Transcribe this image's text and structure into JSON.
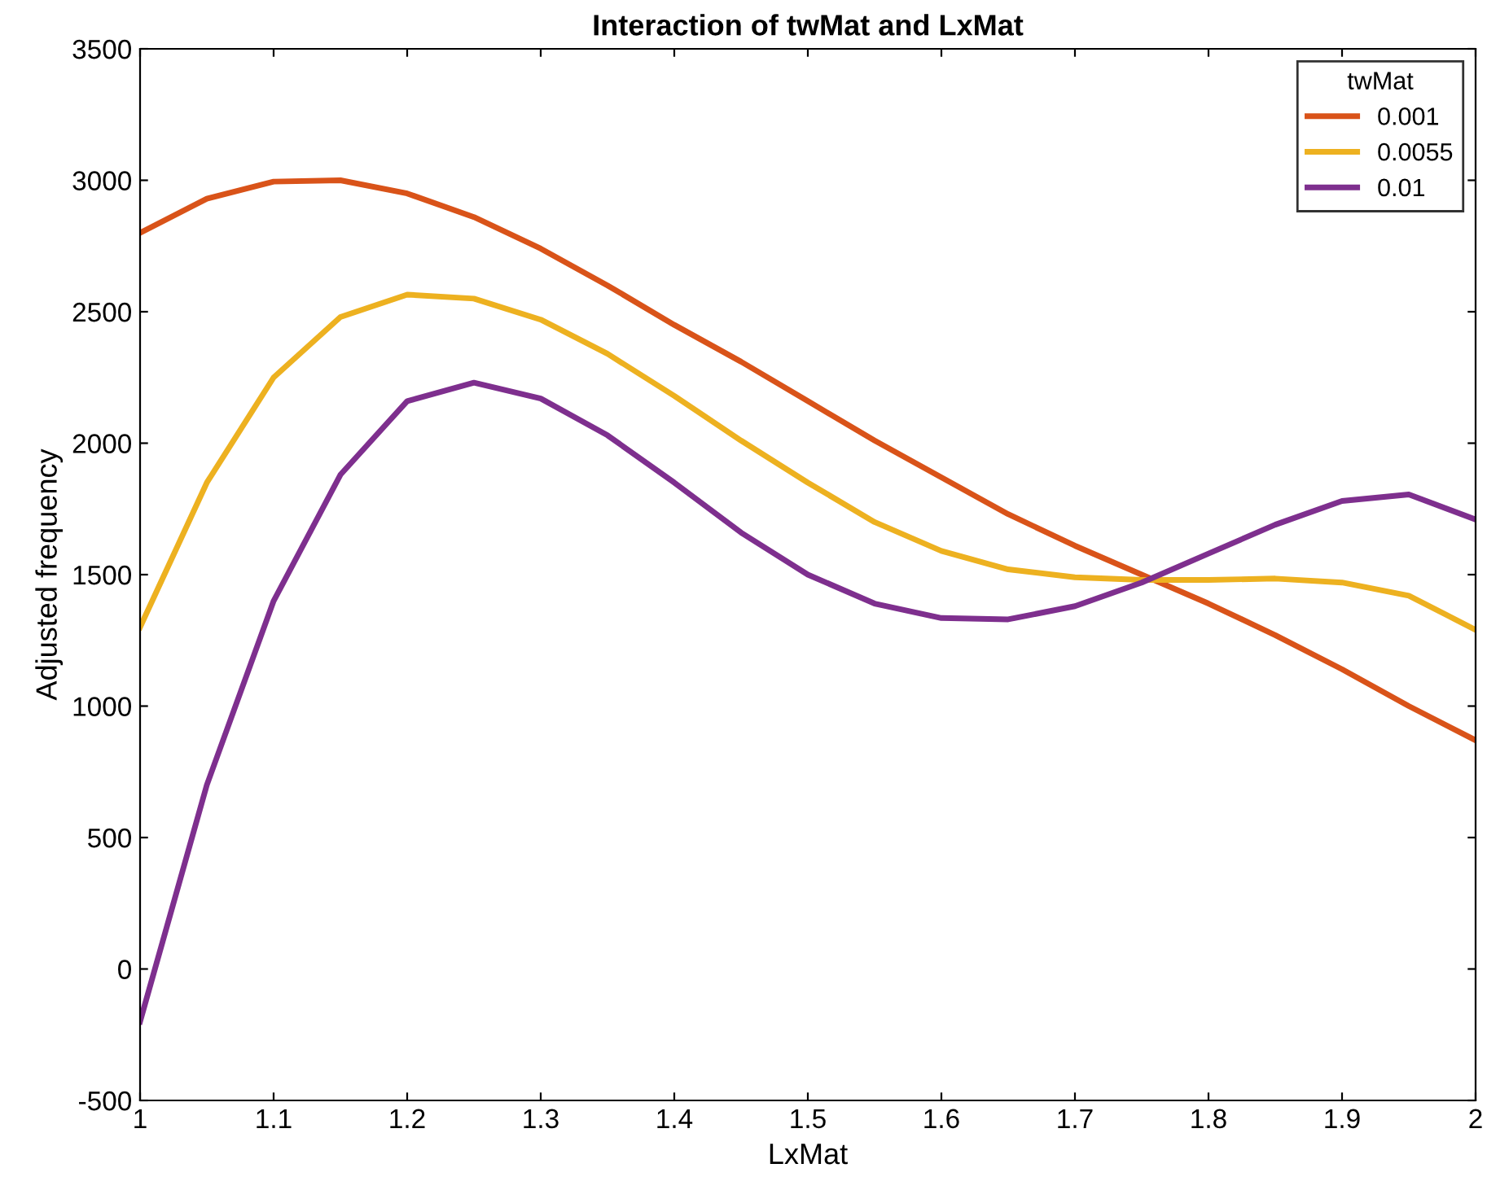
{
  "chart_data": {
    "type": "line",
    "title": "Interaction of twMat and LxMat",
    "xlabel": "LxMat",
    "ylabel": "Adjusted frequency",
    "legend_title": "twMat",
    "legend": "top right",
    "grid": false,
    "marker": "none",
    "line_style": "solid",
    "x": [
      1.0,
      1.05,
      1.1,
      1.15,
      1.2,
      1.25,
      1.3,
      1.35,
      1.4,
      1.45,
      1.5,
      1.55,
      1.6,
      1.65,
      1.7,
      1.75,
      1.8,
      1.85,
      1.9,
      1.95,
      2.0
    ],
    "series": [
      {
        "name": "0.001",
        "color": "#d95319",
        "values": [
          2800,
          2930,
          2995,
          3000,
          2950,
          2860,
          2740,
          2600,
          2450,
          2310,
          2160,
          2010,
          1870,
          1730,
          1610,
          1500,
          1390,
          1270,
          1140,
          1000,
          870
        ]
      },
      {
        "name": "0.0055",
        "color": "#edb120",
        "values": [
          1300,
          1850,
          2250,
          2480,
          2565,
          2550,
          2470,
          2340,
          2180,
          2010,
          1850,
          1700,
          1590,
          1520,
          1490,
          1480,
          1480,
          1485,
          1470,
          1420,
          1290
        ]
      },
      {
        "name": "0.01",
        "color": "#7e2f8e",
        "values": [
          -200,
          700,
          1400,
          1880,
          2160,
          2230,
          2170,
          2030,
          1850,
          1660,
          1500,
          1390,
          1335,
          1330,
          1380,
          1470,
          1580,
          1690,
          1780,
          1805,
          1710
        ]
      }
    ],
    "xlim": [
      1,
      2
    ],
    "xticks": [
      1,
      {
        "value": 1.1,
        "label": "1.1"
      },
      {
        "value": 1.2,
        "label": "1.2"
      },
      {
        "value": 1.3,
        "label": "1.3"
      },
      {
        "value": 1.4,
        "label": "1.4"
      },
      {
        "value": 1.5,
        "label": "1.5"
      },
      {
        "value": 1.6,
        "label": "1.6"
      },
      {
        "value": 1.7,
        "label": "1.7"
      },
      {
        "value": 1.8,
        "label": "1.8"
      },
      {
        "value": 1.9,
        "label": "1.9"
      },
      2
    ],
    "ylim": [
      -500,
      3500
    ],
    "yticks": [
      -500,
      0,
      500,
      1000,
      1500,
      2000,
      2500,
      3000,
      3500
    ]
  }
}
